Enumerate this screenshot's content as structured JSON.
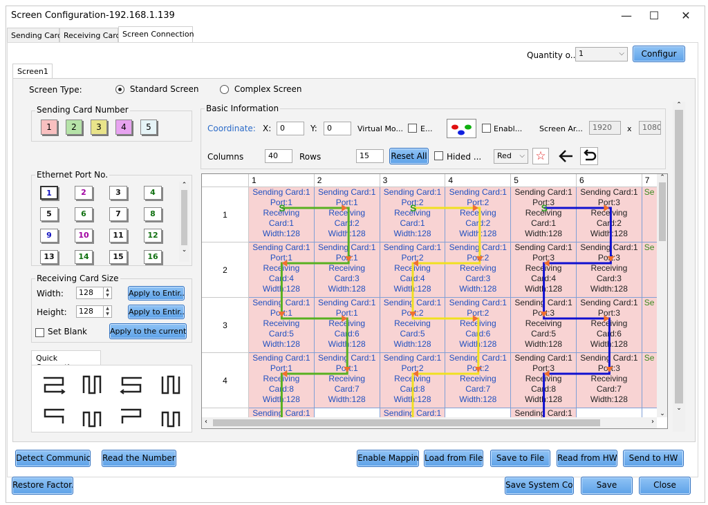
{
  "window": {
    "title": "Screen Configuration-192.168.1.139",
    "minimize": "—",
    "maximize": "☐",
    "close": "✕"
  },
  "tabs": [
    "Sending Card",
    "Receiving Card",
    "Screen Connection"
  ],
  "quantity": {
    "label": "Quantity o...",
    "value": "1",
    "configure_label": "Configur"
  },
  "screen_tab": "Screen1",
  "screen_type": {
    "label": "Screen Type:",
    "standard": "Standard Screen",
    "complex": "Complex Screen",
    "selected": "standard"
  },
  "sending_card_number": {
    "title": "Sending Card Number",
    "items": [
      {
        "label": "1",
        "color": "#f9c0c0"
      },
      {
        "label": "2",
        "color": "#b6e3a8"
      },
      {
        "label": "3",
        "color": "#e9e48a"
      },
      {
        "label": "4",
        "color": "#e7a3f0"
      },
      {
        "label": "5",
        "color": "#e6f4f7"
      }
    ]
  },
  "ethernet_port": {
    "title": "Ethernet Port No.",
    "ports": [
      {
        "label": "1",
        "color": "#1010c0"
      },
      {
        "label": "2",
        "color": "#a000a0"
      },
      {
        "label": "3",
        "color": "#111111"
      },
      {
        "label": "4",
        "color": "#107010"
      },
      {
        "label": "5",
        "color": "#111111"
      },
      {
        "label": "6",
        "color": "#107010"
      },
      {
        "label": "7",
        "color": "#111111"
      },
      {
        "label": "8",
        "color": "#107010"
      },
      {
        "label": "9",
        "color": "#1010c0"
      },
      {
        "label": "10",
        "color": "#a000a0"
      },
      {
        "label": "11",
        "color": "#111111"
      },
      {
        "label": "12",
        "color": "#107010"
      },
      {
        "label": "13",
        "color": "#111111"
      },
      {
        "label": "14",
        "color": "#107010"
      },
      {
        "label": "15",
        "color": "#111111"
      },
      {
        "label": "16",
        "color": "#107010"
      }
    ]
  },
  "receiving_card_size": {
    "title": "Receiving Card Size",
    "width_label": "Width:",
    "width": "128",
    "height_label": "Height:",
    "height": "128",
    "apply_entire_w": "Apply to Entir...",
    "apply_entire_h": "Apply to Entir...",
    "set_blank": "Set Blank",
    "apply_current": "Apply to the current..."
  },
  "quick_connection": {
    "title": "Quick Connection"
  },
  "basic_info": {
    "title": "Basic Information",
    "coordinate": "Coordinate:",
    "x_label": "X:",
    "x": "0",
    "y_label": "Y:",
    "y": "0",
    "virtual_mode": "Virtual Mo...",
    "e_label": "E...",
    "enable_label": "Enabl...",
    "screen_area": "Screen Ar...",
    "area_w": "1920",
    "area_x": "x",
    "area_h": "1080",
    "columns_label": "Columns",
    "columns": "40",
    "rows_label": "Rows",
    "rows": "15",
    "reset_all": "Reset All",
    "hided": "Hided ...",
    "color_value": "Red"
  },
  "grid": {
    "columns": [
      "1",
      "2",
      "3",
      "4",
      "5",
      "6",
      "7"
    ],
    "rows": [
      "1",
      "2",
      "3",
      "4"
    ],
    "cells": [
      [
        [
          "Sending Card:1",
          "Port:1",
          "Receiving",
          "Card:1",
          "Width:128"
        ],
        [
          "Sending Card:1",
          "Port:1",
          "Receiving",
          "Card:2",
          "Width:128"
        ],
        [
          "Sending Card:1",
          "Port:2",
          "Receiving",
          "Card:1",
          "Width:128"
        ],
        [
          "Sending Card:1",
          "Port:2",
          "Receiving",
          "Card:2",
          "Width:128"
        ],
        [
          "Sending Card:1",
          "Port:3",
          "Receiving",
          "Card:1",
          "Width:128"
        ],
        [
          "Sending Card:1",
          "Port:3",
          "Receiving",
          "Card:2",
          "Width:128"
        ],
        [
          "Se"
        ]
      ],
      [
        [
          "Sending Card:1",
          "Port:1",
          "Receiving",
          "Card:4",
          "Width:128"
        ],
        [
          "Sending Card:1",
          "Port:1",
          "Receiving",
          "Card:3",
          "Width:128"
        ],
        [
          "Sending Card:1",
          "Port:2",
          "Receiving",
          "Card:4",
          "Width:128"
        ],
        [
          "Sending Card:1",
          "Port:2",
          "Receiving",
          "Card:3",
          "Width:128"
        ],
        [
          "Sending Card:1",
          "Port:3",
          "Receiving",
          "Card:4",
          "Width:128"
        ],
        [
          "Sending Card:1",
          "Port:3",
          "Receiving",
          "Card:3",
          "Width:128"
        ],
        [
          "Se"
        ]
      ],
      [
        [
          "Sending Card:1",
          "Port:1",
          "Receiving",
          "Card:5",
          "Width:128"
        ],
        [
          "Sending Card:1",
          "Port:1",
          "Receiving",
          "Card:6",
          "Width:128"
        ],
        [
          "Sending Card:1",
          "Port:2",
          "Receiving",
          "Card:5",
          "Width:128"
        ],
        [
          "Sending Card:1",
          "Port:2",
          "Receiving",
          "Card:6",
          "Width:128"
        ],
        [
          "Sending Card:1",
          "Port:3",
          "Receiving",
          "Card:5",
          "Width:128"
        ],
        [
          "Sending Card:1",
          "Port:3",
          "Receiving",
          "Card:6",
          "Width:128"
        ],
        [
          "Se"
        ]
      ],
      [
        [
          "Sending Card:1",
          "Port:1",
          "Receiving",
          "Card:8",
          "Width:128"
        ],
        [
          "Sending Card:1",
          "Port:1",
          "Receiving",
          "Card:7",
          "Width:128"
        ],
        [
          "Sending Card:1",
          "Port:2",
          "Receiving",
          "Card:8",
          "Width:128"
        ],
        [
          "Sending Card:1",
          "Port:2",
          "Receiving",
          "Card:7",
          "Width:128"
        ],
        [
          "Sending Card:1",
          "Port:3",
          "Receiving",
          "Card:8",
          "Width:128"
        ],
        [
          "Sending Card:1",
          "Port:3",
          "Receiving",
          "Card:7",
          "Width:128"
        ],
        [
          "Se"
        ]
      ]
    ],
    "partial_row": [
      "Sending Card:1",
      "",
      "Sending Card:1",
      "",
      "Sending Card:1",
      "",
      ""
    ],
    "text_colors": {
      "port1": "#7a20c8",
      "port2": "#7a20c8",
      "port3": "#222222",
      "sc_blue": "#2050c0"
    },
    "line_colors": {
      "port1": "#58b020",
      "port2": "#f0e020",
      "port3": "#1010d0"
    }
  },
  "bottom": {
    "detect": "Detect Communic...",
    "read_number": "Read the Number ...",
    "enable_mapping": "Enable Mapping",
    "load_file": "Load from File",
    "save_file": "Save to File",
    "read_hw": "Read from HW",
    "send_hw": "Send to HW",
    "restore": "Restore Factor...",
    "save_system": "Save System Co...",
    "save": "Save",
    "close": "Close"
  }
}
